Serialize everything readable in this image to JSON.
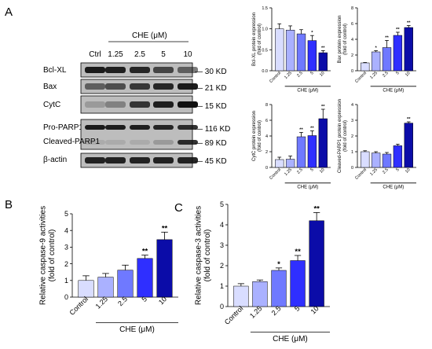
{
  "panel_labels": [
    "A",
    "B",
    "C"
  ],
  "colors": {
    "bars": [
      "#d9ddff",
      "#aab1ff",
      "#6f79ff",
      "#2f2fff",
      "#0b0ca8"
    ],
    "frame": "#000000",
    "blot_band": "#111111",
    "blot_bg": "#bdbdbd"
  },
  "blot": {
    "header_treat": "CHE (μM)",
    "lanes": [
      "Ctrl",
      "1.25",
      "2.5",
      "5",
      "10"
    ],
    "rows": [
      {
        "label": "Bcl-XL",
        "size": "30 KD",
        "intensity": [
          0.95,
          0.92,
          0.88,
          0.7,
          0.55
        ]
      },
      {
        "label": "Bax",
        "size": "21 KD",
        "intensity": [
          0.55,
          0.65,
          0.78,
          0.88,
          0.95
        ]
      },
      {
        "label": "CytC",
        "size": "15 KD",
        "intensity": [
          0.2,
          0.35,
          0.8,
          0.92,
          1.0
        ]
      },
      {
        "label": "Pro-PARP1",
        "size": "116 KD",
        "intensity": [
          0.95,
          0.93,
          0.92,
          0.88,
          0.85
        ]
      },
      {
        "label": "Cleaved-PARP1",
        "size": "89 KD",
        "intensity": [
          0.1,
          0.1,
          0.1,
          0.2,
          0.85
        ]
      },
      {
        "label": "β-actin",
        "size": "45 KD",
        "intensity": [
          0.9,
          0.9,
          0.9,
          0.9,
          0.9
        ]
      }
    ]
  },
  "chart_data": [
    {
      "id": "bclxl",
      "type": "bar",
      "categories": [
        "Control",
        "1.25",
        "2.5",
        "5",
        "10"
      ],
      "values": [
        1.0,
        0.97,
        0.88,
        0.72,
        0.43
      ],
      "errors": [
        0.12,
        0.1,
        0.1,
        0.12,
        0.05
      ],
      "sig": [
        "",
        "",
        "",
        "*",
        "**"
      ],
      "ylabel": "Bcl-XL protein expression\n(fold of control)",
      "xlabel": "CHE (μM)",
      "ylim": [
        0,
        1.5
      ],
      "yticks": [
        0.0,
        0.5,
        1.0,
        1.5
      ],
      "tick_labels": [
        "0.0",
        "0.5",
        "1.0",
        "1.5"
      ]
    },
    {
      "id": "bax",
      "type": "bar",
      "categories": [
        "Control",
        "1.25",
        "2.5",
        "5",
        "10"
      ],
      "values": [
        1.0,
        2.4,
        2.95,
        4.5,
        5.5
      ],
      "errors": [
        0.05,
        0.15,
        0.9,
        0.4,
        0.25
      ],
      "sig": [
        "",
        "*",
        "**",
        "**",
        "**"
      ],
      "ylabel": "Bax protein expression\n(fold of control)",
      "xlabel": "CHE (μM)",
      "ylim": [
        0,
        8
      ],
      "yticks": [
        0,
        2,
        4,
        6,
        8
      ],
      "tick_labels": [
        "0",
        "2",
        "4",
        "6",
        "8"
      ]
    },
    {
      "id": "cytc",
      "type": "bar",
      "categories": [
        "Control",
        "1.25",
        "2.5",
        "5",
        "10"
      ],
      "values": [
        1.0,
        1.05,
        3.9,
        4.05,
        6.2
      ],
      "errors": [
        0.3,
        0.4,
        0.55,
        0.6,
        1.2
      ],
      "sig": [
        "",
        "",
        "**",
        "**",
        "**"
      ],
      "ylabel": "CytC protein expression\n(fold of control)",
      "xlabel": "CHE (μM)",
      "ylim": [
        0,
        8
      ],
      "yticks": [
        0,
        2,
        4,
        6,
        8
      ],
      "tick_labels": [
        "0",
        "2",
        "4",
        "6",
        "8"
      ]
    },
    {
      "id": "cparp",
      "type": "bar",
      "categories": [
        "Control",
        "1.25",
        "2.5",
        "5",
        "10"
      ],
      "values": [
        1.0,
        0.92,
        0.85,
        1.38,
        2.82
      ],
      "errors": [
        0.06,
        0.08,
        0.1,
        0.1,
        0.08
      ],
      "sig": [
        "",
        "",
        "",
        "",
        "**"
      ],
      "ylabel": "Cleaved-PARP1 protein expression\n(fold of control)",
      "xlabel": "CHE (μM)",
      "ylim": [
        0,
        4
      ],
      "yticks": [
        0,
        1,
        2,
        3,
        4
      ],
      "tick_labels": [
        "0",
        "1",
        "2",
        "3",
        "4"
      ]
    },
    {
      "id": "casp9",
      "type": "bar",
      "categories": [
        "Control",
        "1.25",
        "2.5",
        "5",
        "10"
      ],
      "values": [
        1.0,
        1.2,
        1.62,
        2.32,
        3.45
      ],
      "errors": [
        0.28,
        0.22,
        0.3,
        0.2,
        0.45
      ],
      "sig": [
        "",
        "",
        "",
        "**",
        "**"
      ],
      "ylabel": "Relative caspase-9 activities\n(fold of control)",
      "xlabel": "CHE (μM)",
      "ylim": [
        0,
        5
      ],
      "yticks": [
        0,
        1,
        2,
        3,
        4,
        5
      ],
      "tick_labels": [
        "0",
        "1",
        "2",
        "3",
        "4",
        "5"
      ]
    },
    {
      "id": "casp3",
      "type": "bar",
      "categories": [
        "Control",
        "1.25",
        "2.5",
        "5",
        "10"
      ],
      "values": [
        1.0,
        1.22,
        1.77,
        2.25,
        4.2
      ],
      "errors": [
        0.12,
        0.08,
        0.12,
        0.25,
        0.4
      ],
      "sig": [
        "",
        "",
        "*",
        "**",
        "**"
      ],
      "ylabel": "Relative caspase-3 activities\n(fold of control)",
      "xlabel": "CHE (μM)",
      "ylim": [
        0,
        5
      ],
      "yticks": [
        0,
        1,
        2,
        3,
        4,
        5
      ],
      "tick_labels": [
        "0",
        "1",
        "2",
        "3",
        "4",
        "5"
      ]
    }
  ]
}
